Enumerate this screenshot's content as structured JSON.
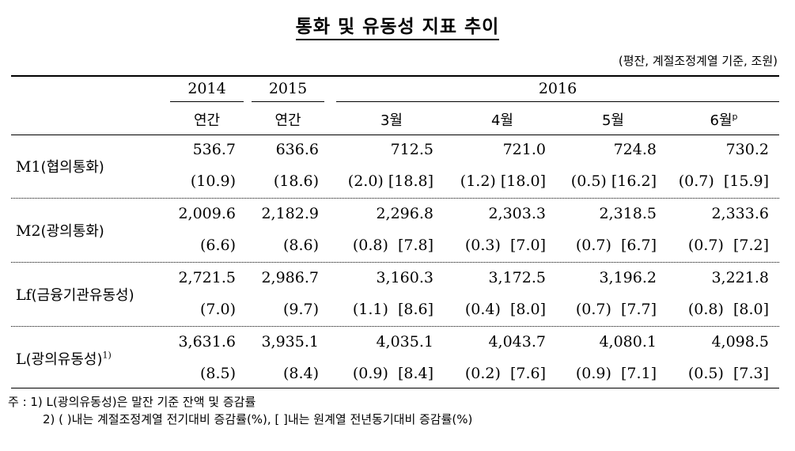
{
  "title": "통화 및 유동성 지표 추이",
  "unit_note": "(평잔, 계절조정계열 기준, 조원)",
  "header": {
    "y2014": "2014",
    "y2015": "2015",
    "y2016": "2016",
    "annual": "연간",
    "m3": "3월",
    "m4": "4월",
    "m5": "5월",
    "m6": "6월",
    "m6_sup": "p"
  },
  "rows": [
    {
      "label": "M1",
      "label_kr": "(협의통화)",
      "label_sup": "",
      "values": [
        "536.7",
        "636.6",
        "712.5",
        "721.0",
        "724.8",
        "730.2"
      ],
      "changes": [
        "(10.9)",
        "(18.6)",
        "(2.0) [18.8]",
        "(1.2) [18.0]",
        "(0.5) [16.2]",
        "(0.7)  [15.9]"
      ]
    },
    {
      "label": "M2",
      "label_kr": "(광의통화)",
      "label_sup": "",
      "values": [
        "2,009.6",
        "2,182.9",
        "2,296.8",
        "2,303.3",
        "2,318.5",
        "2,333.6"
      ],
      "changes": [
        "(6.6)",
        "(8.6)",
        "(0.8)  [7.8]",
        "(0.3)  [7.0]",
        "(0.7)  [6.7]",
        "(0.7)  [7.2]"
      ]
    },
    {
      "label": "Lf",
      "label_kr": "(금융기관유동성)",
      "label_sup": "",
      "values": [
        "2,721.5",
        "2,986.7",
        "3,160.3",
        "3,172.5",
        "3,196.2",
        "3,221.8"
      ],
      "changes": [
        "(7.0)",
        "(9.7)",
        "(1.1)  [8.6]",
        "(0.4)  [8.0]",
        "(0.7)  [7.7]",
        "(0.8)  [8.0]"
      ]
    },
    {
      "label": "L",
      "label_kr": "(광의유동성)",
      "label_sup": "1)",
      "values": [
        "3,631.6",
        "3,935.1",
        "4,035.1",
        "4,043.7",
        "4,080.1",
        "4,098.5"
      ],
      "changes": [
        "(8.5)",
        "(8.4)",
        "(0.9)  [8.4]",
        "(0.2)  [7.6]",
        "(0.9)  [7.1]",
        "(0.5)  [7.3]"
      ]
    }
  ],
  "notes": {
    "line1": "주 : 1) L(광의유동성)은 말잔 기준 잔액 및 증감률",
    "line2": "2) (     )내는 계절조정계열 전기대비 증감률(%), [     ]내는 원계열 전년동기대비 증감률(%)"
  }
}
